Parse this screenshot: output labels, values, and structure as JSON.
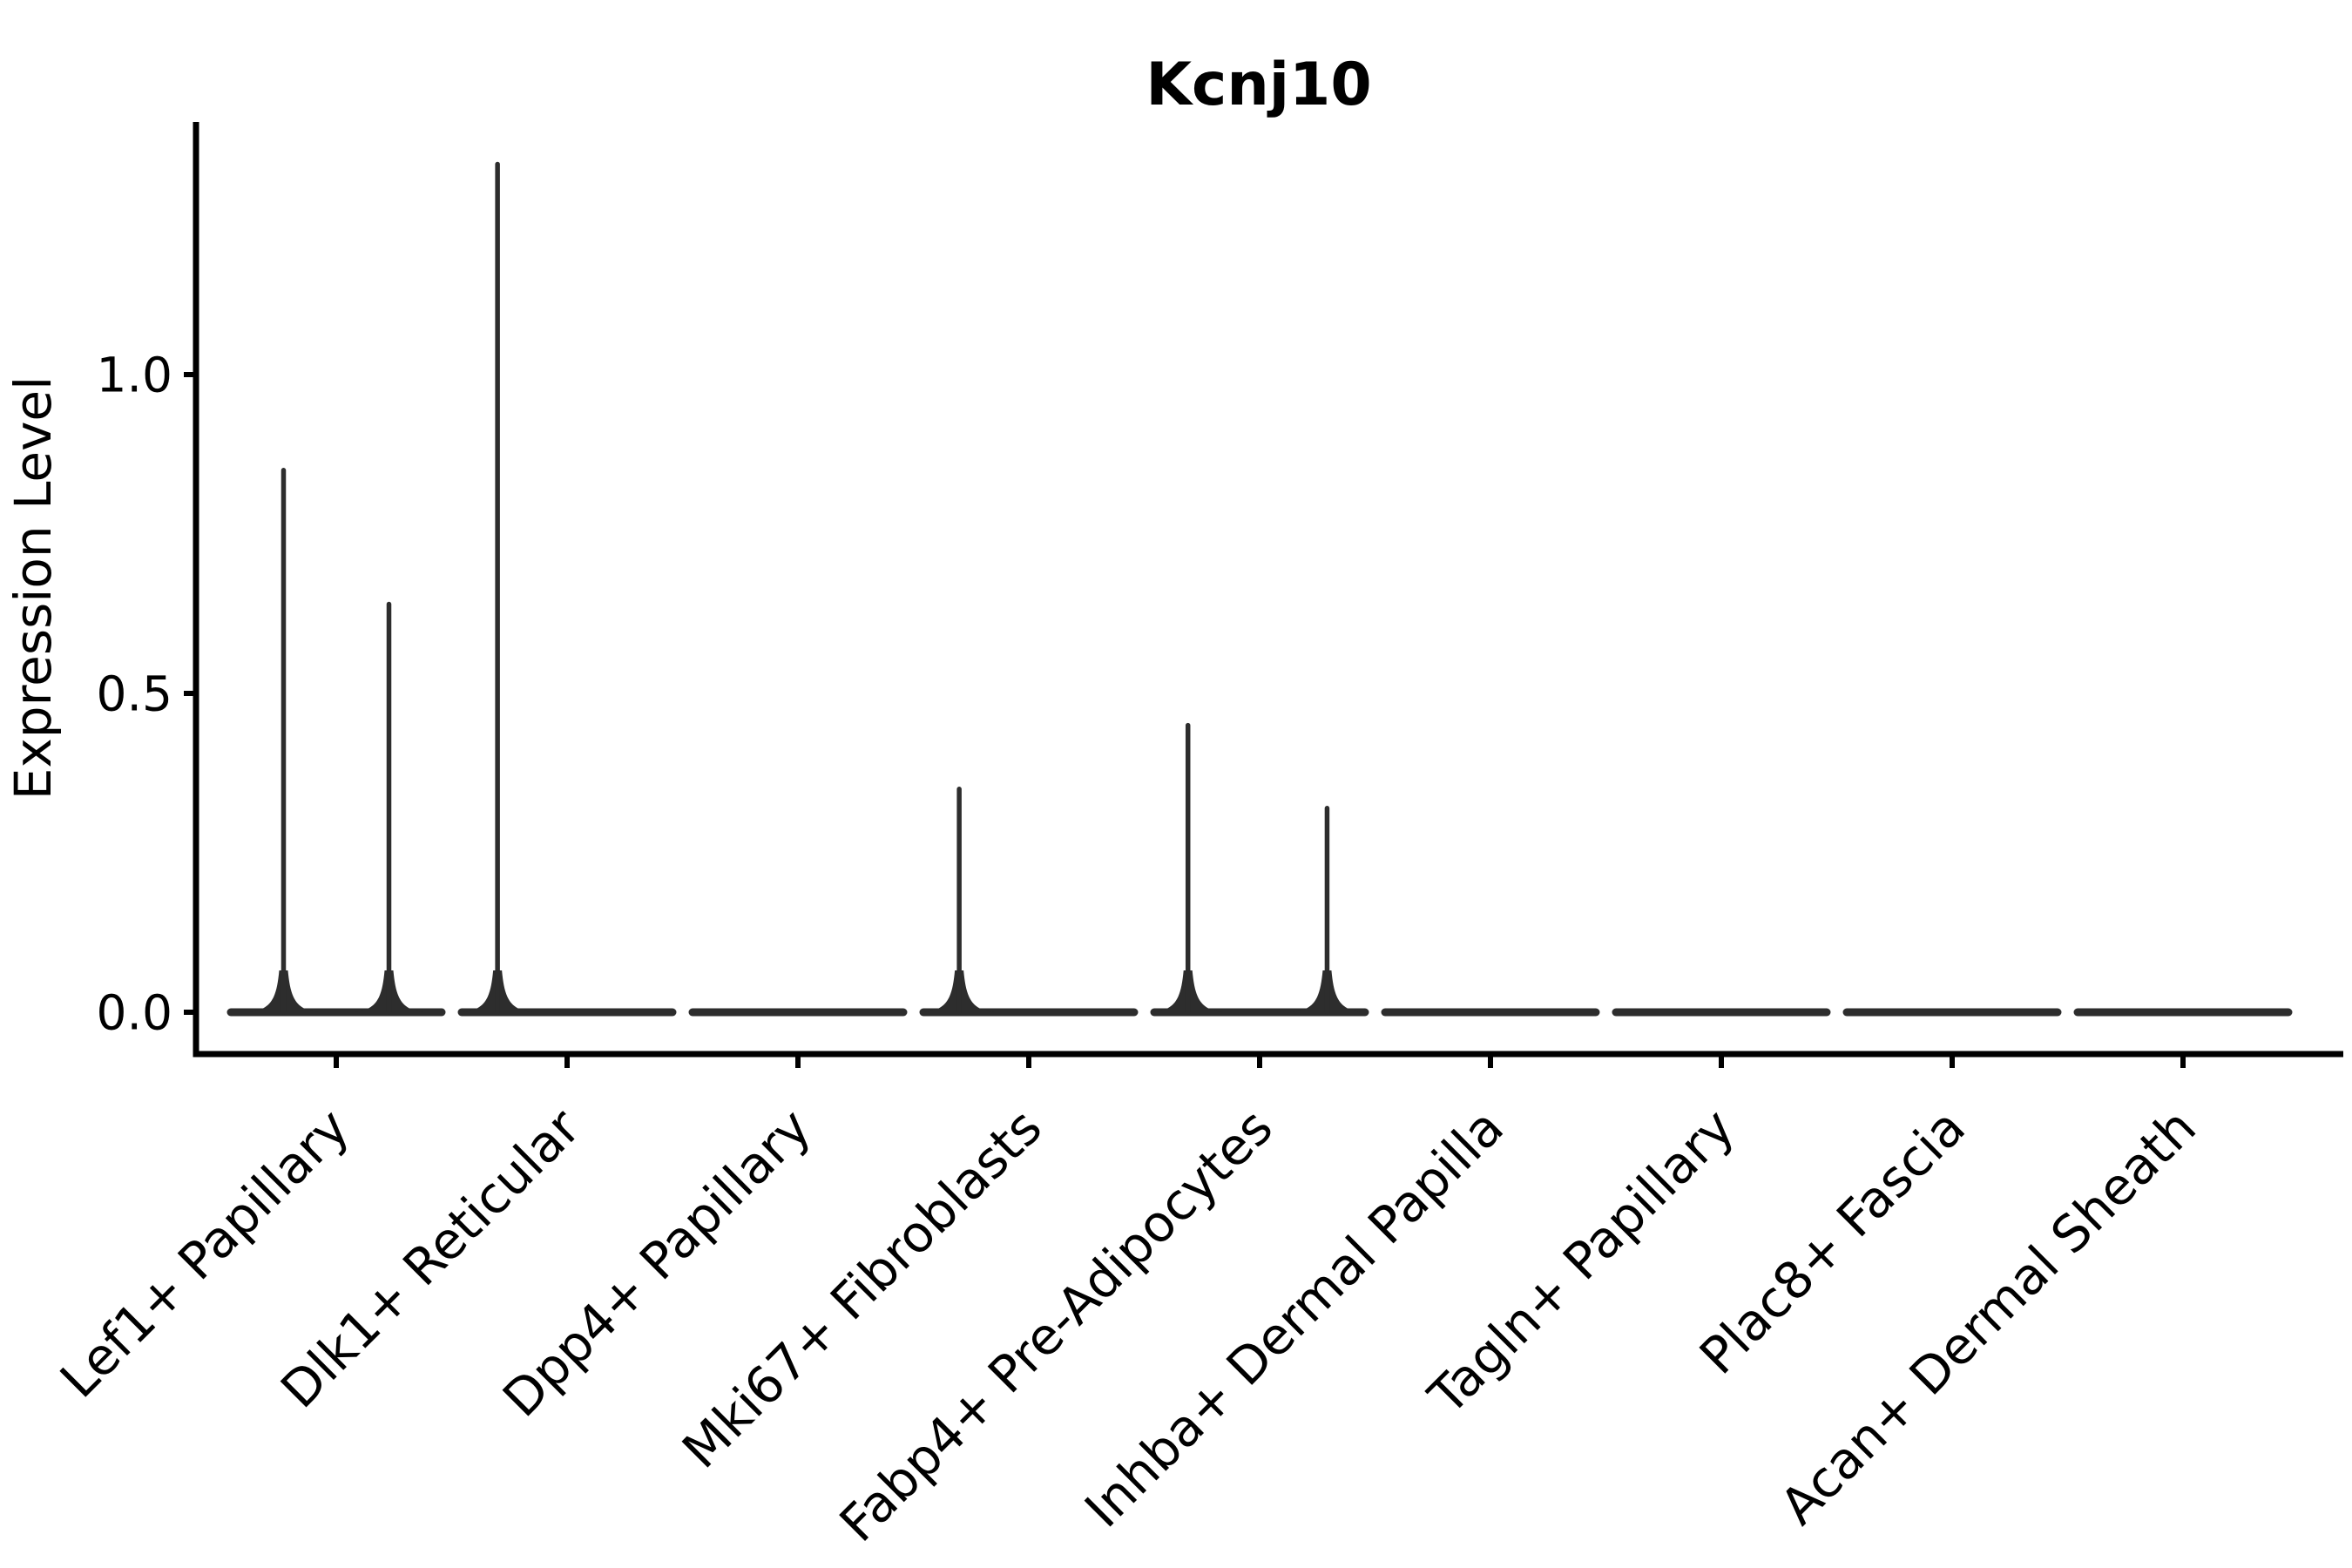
{
  "page": {
    "background": "#ffffff"
  },
  "chart_data": {
    "type": "violin",
    "title": "Kcnj10",
    "xlabel": "",
    "ylabel": "Expression Level",
    "ylim": [
      -0.07,
      1.4
    ],
    "grid": false,
    "legend": "none",
    "violin_color": "#2d2d2d",
    "axis_color": "#000000",
    "yticks": [
      {
        "label": "0.0",
        "value": 0.0
      },
      {
        "label": "0.5",
        "value": 0.5
      },
      {
        "label": "1.0",
        "value": 1.0
      }
    ],
    "categories": [
      {
        "label": "Lef1+ Papillary",
        "spikes": [
          {
            "position": 0.25,
            "max_expression": 0.85
          },
          {
            "position": 0.75,
            "max_expression": 0.64
          }
        ]
      },
      {
        "label": "Dlk1+ Reticular",
        "spikes": [
          {
            "position": 0.17,
            "max_expression": 1.33
          }
        ]
      },
      {
        "label": "Dpp4+ Papillary",
        "spikes": []
      },
      {
        "label": "Mki67+ Fibroblasts",
        "spikes": [
          {
            "position": 0.17,
            "max_expression": 0.35
          }
        ]
      },
      {
        "label": "Fabp4+ Pre-Adipocytes",
        "spikes": [
          {
            "position": 0.16,
            "max_expression": 0.45
          },
          {
            "position": 0.82,
            "max_expression": 0.32
          }
        ]
      },
      {
        "label": "Inhba+ Dermal Papilla",
        "spikes": []
      },
      {
        "label": "Tagln+ Papillary",
        "spikes": []
      },
      {
        "label": "Plac8+ Fascia",
        "spikes": []
      },
      {
        "label": "Acan+ Dermal Sheath",
        "spikes": []
      }
    ]
  }
}
